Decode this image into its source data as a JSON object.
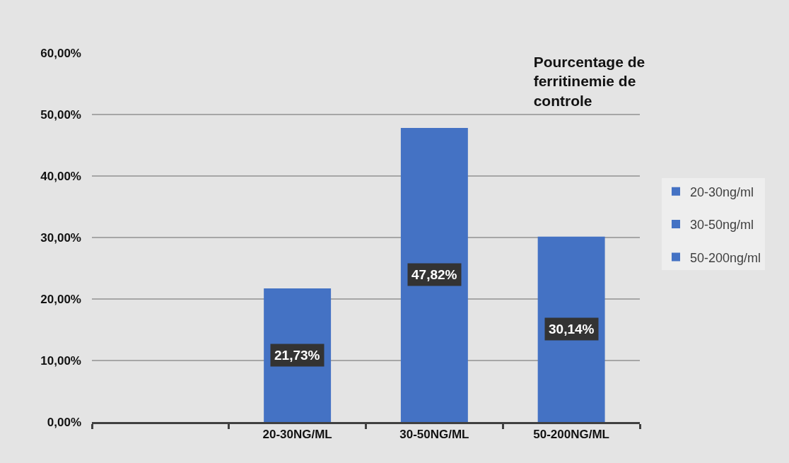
{
  "chart_data": {
    "type": "bar",
    "title": "Pourcentage de ferritinemie de controle",
    "categories": [
      null,
      "20-30NG/ML",
      "30-50NG/ML",
      "50-200NG/ML"
    ],
    "series": [
      {
        "name": "20-30ng/ml",
        "color": "#4472c4",
        "values": [
          null,
          21.73,
          null,
          null
        ],
        "value_labels": [
          null,
          "21,73%",
          null,
          null
        ]
      },
      {
        "name": "30-50ng/ml",
        "color": "#4472c4",
        "values": [
          null,
          null,
          47.82,
          null
        ],
        "value_labels": [
          null,
          null,
          "47,82%",
          null
        ]
      },
      {
        "name": "50-200ng/ml",
        "color": "#4472c4",
        "values": [
          null,
          null,
          null,
          30.14
        ],
        "value_labels": [
          null,
          null,
          null,
          "30,14%"
        ]
      }
    ],
    "ylim": [
      0,
      60
    ],
    "yticks": [
      {
        "value": 0,
        "label": "0,00%"
      },
      {
        "value": 10,
        "label": "10,00%"
      },
      {
        "value": 20,
        "label": "20,00%"
      },
      {
        "value": 30,
        "label": "30,00%"
      },
      {
        "value": 40,
        "label": "40,00%"
      },
      {
        "value": 50,
        "label": "50,00%"
      },
      {
        "value": 60,
        "label": "60,00%"
      }
    ],
    "grid": "y",
    "legend": "right"
  }
}
